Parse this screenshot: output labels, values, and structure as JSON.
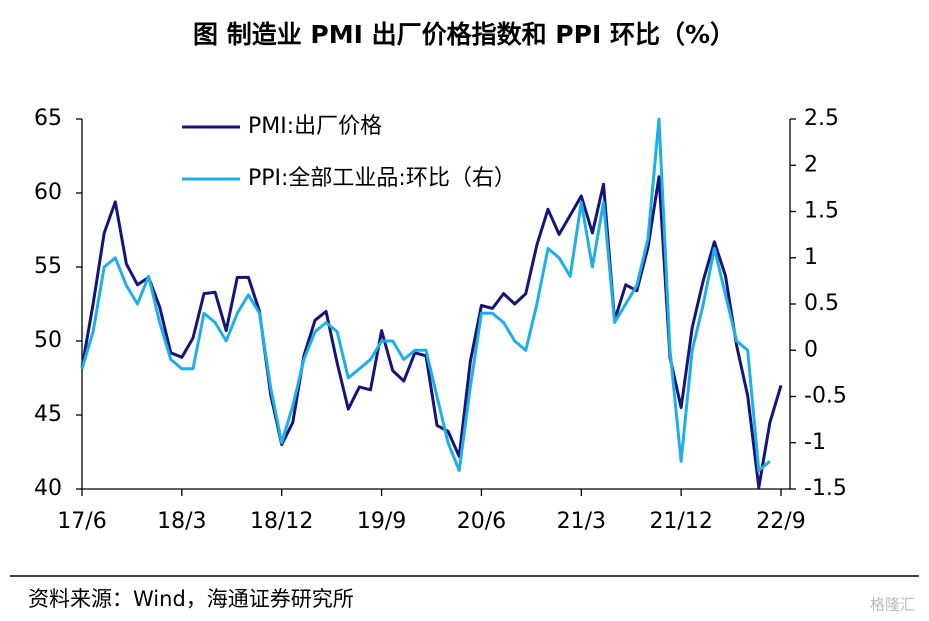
{
  "chart_data": {
    "type": "line",
    "title": "图  制造业 PMI 出厂价格指数和 PPI 环比（%）",
    "source": "资料来源：Wind，海通证券研究所",
    "watermark": "格隆汇",
    "categories": [
      "17/6",
      null,
      null,
      null,
      null,
      null,
      null,
      null,
      null,
      "18/3",
      null,
      null,
      null,
      null,
      null,
      null,
      null,
      null,
      "18/12",
      null,
      null,
      null,
      null,
      null,
      null,
      null,
      null,
      "19/9",
      null,
      null,
      null,
      null,
      null,
      null,
      null,
      null,
      "20/6",
      null,
      null,
      null,
      null,
      null,
      null,
      null,
      null,
      "21/3",
      null,
      null,
      null,
      null,
      null,
      null,
      null,
      null,
      "21/12",
      null,
      null,
      null,
      null,
      null,
      null,
      null,
      null,
      "22/9"
    ],
    "series": [
      {
        "name": "PMI:出厂价格",
        "color": "#14147a",
        "values": [
          48.2,
          52.5,
          57.3,
          59.4,
          55.2,
          53.8,
          54.3,
          52.3,
          49.2,
          48.9,
          50.2,
          53.2,
          53.3,
          50.7,
          54.3,
          54.3,
          52.0,
          46.4,
          43.0,
          44.5,
          49.0,
          51.4,
          52.0,
          48.5,
          45.4,
          46.9,
          46.7,
          50.7,
          48.0,
          47.3,
          49.2,
          49.0,
          44.3,
          43.9,
          42.2,
          48.6,
          52.4,
          52.2,
          53.2,
          52.5,
          53.2,
          56.5,
          58.9,
          57.2,
          58.5,
          59.8,
          57.3,
          60.6,
          51.4,
          53.8,
          53.4,
          56.3,
          61.1,
          48.9,
          45.5,
          50.9,
          54.1,
          56.7,
          54.4,
          49.7,
          46.3,
          40.1,
          44.5,
          47.0
        ]
      },
      {
        "name": "PPI:全部工业品:环比（右）",
        "color": "#1eaee8",
        "axis": "y2",
        "values": [
          -0.2,
          0.2,
          0.9,
          1.0,
          0.7,
          0.5,
          0.8,
          0.3,
          -0.1,
          -0.2,
          -0.2,
          0.4,
          0.3,
          0.1,
          0.4,
          0.6,
          0.4,
          -0.4,
          -1.0,
          -0.6,
          -0.1,
          0.2,
          0.3,
          0.2,
          -0.3,
          -0.2,
          -0.1,
          0.1,
          0.1,
          -0.1,
          0.0,
          0.0,
          -0.5,
          -1.0,
          -1.3,
          -0.4,
          0.4,
          0.4,
          0.3,
          0.1,
          0.0,
          0.5,
          1.1,
          1.0,
          0.8,
          1.6,
          0.9,
          1.6,
          0.3,
          0.5,
          0.7,
          1.2,
          2.5,
          0.0,
          -1.2,
          0.0,
          0.5,
          1.1,
          0.6,
          0.1,
          0.0,
          -1.3,
          -1.2,
          null
        ]
      }
    ],
    "ylim": [
      40,
      65
    ],
    "yticks": [
      40,
      45,
      50,
      55,
      60,
      65
    ],
    "y2lim": [
      -1.5,
      2.5
    ],
    "y2ticks": [
      -1.5,
      -1,
      -0.5,
      0,
      0.5,
      1,
      1.5,
      2,
      2.5
    ],
    "legend": "top-left",
    "grid": false
  }
}
